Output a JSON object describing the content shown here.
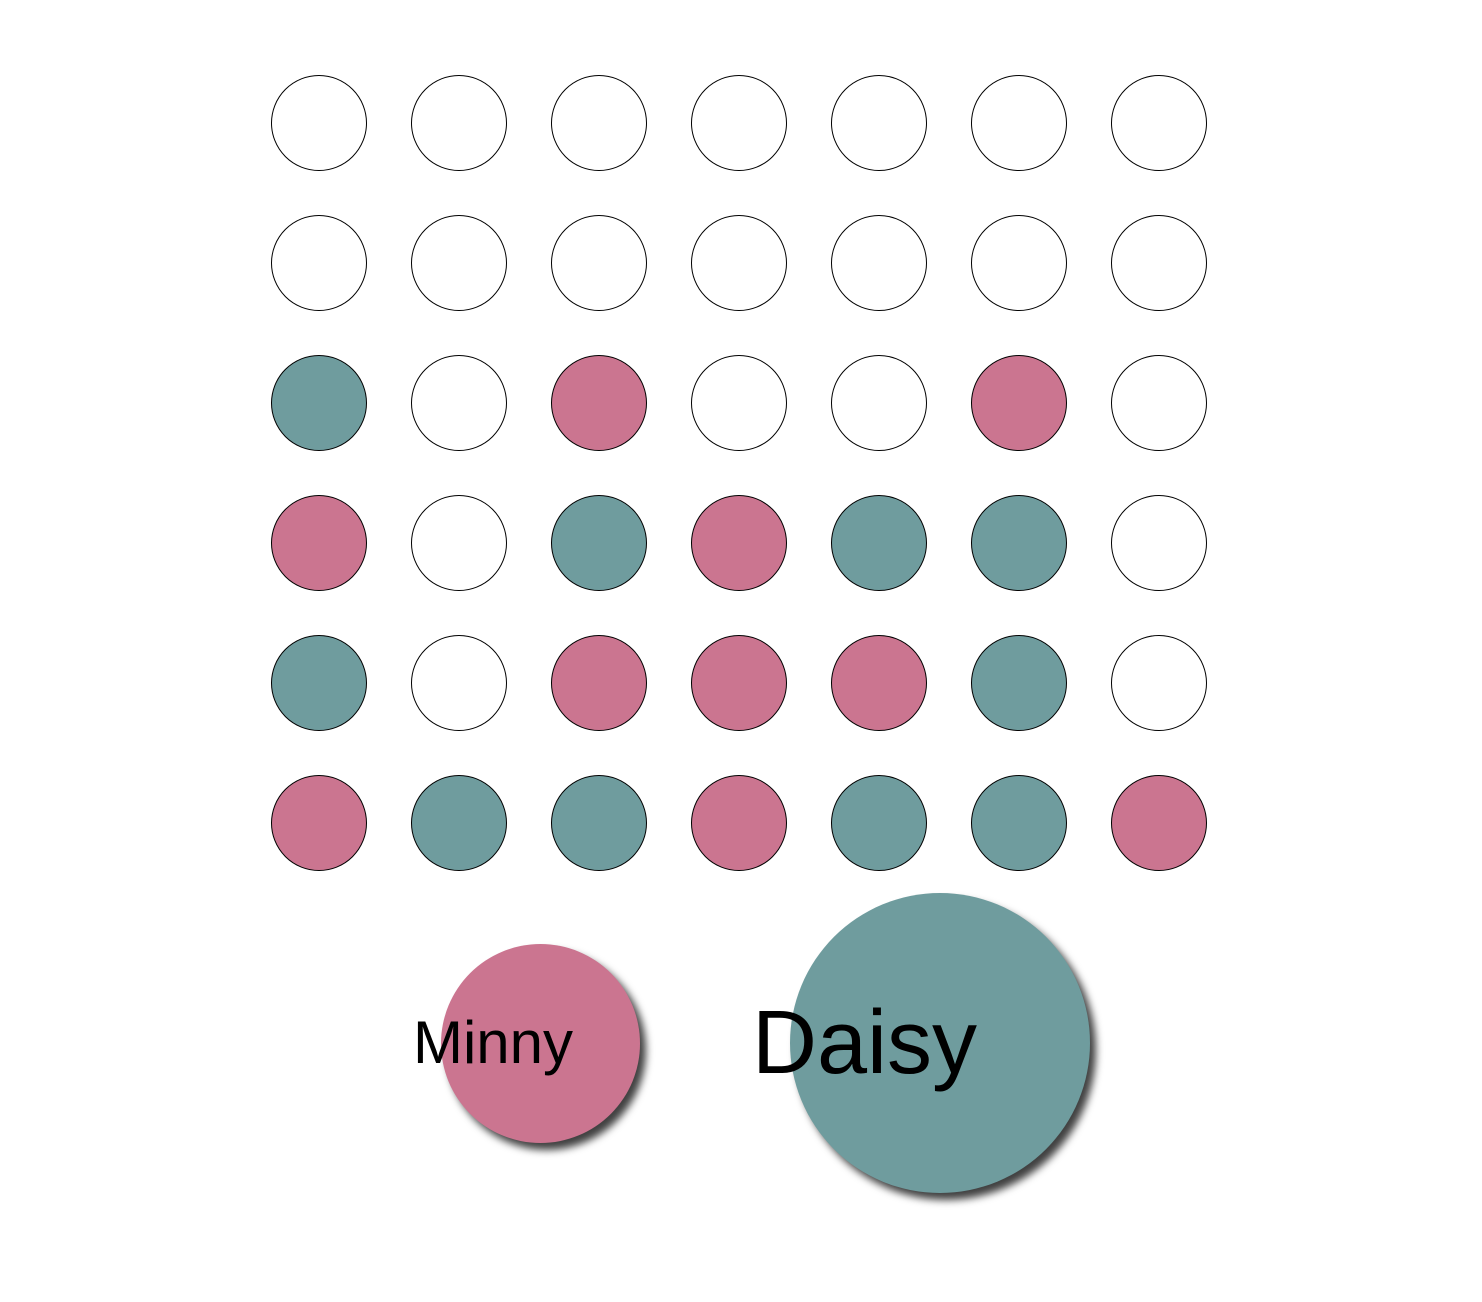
{
  "colors": {
    "empty": "#ffffff",
    "pink": "#cb7590",
    "teal": "#6f9c9e",
    "outline": "#000000"
  },
  "board": {
    "rows": 6,
    "cols": 7,
    "cells": [
      [
        "empty",
        "empty",
        "empty",
        "empty",
        "empty",
        "empty",
        "empty"
      ],
      [
        "empty",
        "empty",
        "empty",
        "empty",
        "empty",
        "empty",
        "empty"
      ],
      [
        "teal",
        "empty",
        "pink",
        "empty",
        "empty",
        "pink",
        "empty"
      ],
      [
        "pink",
        "empty",
        "teal",
        "pink",
        "teal",
        "teal",
        "empty"
      ],
      [
        "teal",
        "empty",
        "pink",
        "pink",
        "pink",
        "teal",
        "empty"
      ],
      [
        "pink",
        "teal",
        "teal",
        "pink",
        "teal",
        "teal",
        "pink"
      ]
    ]
  },
  "players": [
    {
      "name": "Minny",
      "color": "pink",
      "active": false
    },
    {
      "name": "Daisy",
      "color": "teal",
      "active": true
    }
  ]
}
